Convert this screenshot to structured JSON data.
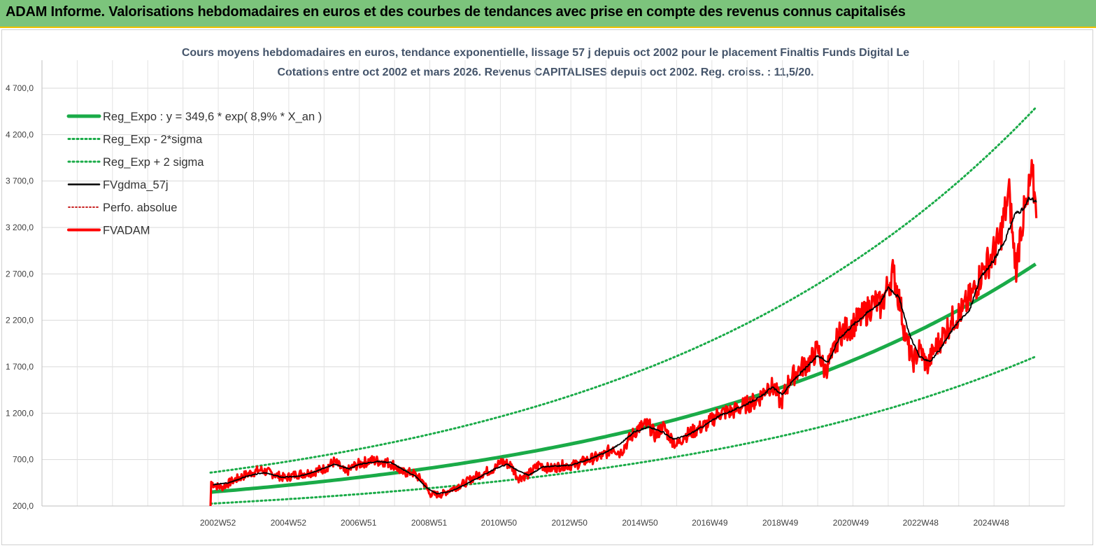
{
  "banner": {
    "text": "ADAM Informe. Valorisations hebdomadaires en euros et des courbes de tendances avec prise en compte des revenus connus capitalisés"
  },
  "chart_data": {
    "type": "line",
    "title_line1": "Cours moyens hebdomadaires en euros, tendance exponentielle, lissage 57 j depuis oct 2002 pour le placement Finaltis Funds Digital Le",
    "title_line2": "Cotations entre oct 2002 et mars 2026. Revenus CAPITALISES depuis oct 2002. Reg. croiss. : 11,5/20.",
    "ylim": [
      200,
      4700
    ],
    "yticks": [
      200,
      700,
      1200,
      1700,
      2200,
      2700,
      3200,
      3700,
      4200,
      4700
    ],
    "ytick_labels": [
      "200,0",
      "700,0",
      "1 200,0",
      "1 700,0",
      "2 200,0",
      "2 700,0",
      "3 200,0",
      "3 700,0",
      "4 200,0",
      "4 700,0"
    ],
    "xlim": [
      1998.0,
      2027.0
    ],
    "xtick_labels": [
      {
        "label": "2002W52",
        "x": 2002.99
      },
      {
        "label": "2004W52",
        "x": 2004.99
      },
      {
        "label": "2006W51",
        "x": 2006.98
      },
      {
        "label": "2008W51",
        "x": 2008.98
      },
      {
        "label": "2010W50",
        "x": 2010.96
      },
      {
        "label": "2012W50",
        "x": 2012.96
      },
      {
        "label": "2014W50",
        "x": 2014.96
      },
      {
        "label": "2016W49",
        "x": 2016.94
      },
      {
        "label": "2018W49",
        "x": 2018.94
      },
      {
        "label": "2020W49",
        "x": 2020.94
      },
      {
        "label": "2022W48",
        "x": 2022.92
      },
      {
        "label": "2024W48",
        "x": 2024.92
      }
    ],
    "start_year": 2002.78,
    "end_year": 2026.2,
    "legend_placement": "top-left",
    "regression": {
      "a": 349.6,
      "rate": 0.089
    },
    "series": [
      {
        "name": "Reg_Expo : y = 349,6 * exp( 8,9% *  X_an )",
        "color": "#1aab48",
        "style": "thick",
        "values": [
          [
            2002.8,
            349.6
          ],
          [
            2026.2,
            2849
          ]
        ]
      },
      {
        "name": "Reg_Exp - 2*sigma",
        "color": "#1aab48",
        "style": "dotted",
        "values": [
          [
            2002.8,
            225
          ],
          [
            2026.2,
            1790
          ]
        ]
      },
      {
        "name": "Reg_Exp + 2 sigma",
        "color": "#1aab48",
        "style": "dotted",
        "values": [
          [
            2002.8,
            550
          ],
          [
            2026.2,
            4570
          ]
        ]
      },
      {
        "name": "FVgdma_57j",
        "color": "#000000",
        "style": "line",
        "values": [
          [
            2002.85,
            430
          ],
          [
            2003.3,
            450
          ],
          [
            2003.8,
            520
          ],
          [
            2004.3,
            560
          ],
          [
            2004.8,
            510
          ],
          [
            2005.3,
            520
          ],
          [
            2005.8,
            580
          ],
          [
            2006.3,
            650
          ],
          [
            2006.7,
            600
          ],
          [
            2007.0,
            650
          ],
          [
            2007.5,
            680
          ],
          [
            2007.9,
            670
          ],
          [
            2008.2,
            600
          ],
          [
            2008.6,
            520
          ],
          [
            2008.9,
            400
          ],
          [
            2009.2,
            330
          ],
          [
            2009.6,
            360
          ],
          [
            2010.0,
            430
          ],
          [
            2010.5,
            530
          ],
          [
            2010.9,
            610
          ],
          [
            2011.2,
            650
          ],
          [
            2011.5,
            580
          ],
          [
            2011.8,
            530
          ],
          [
            2012.2,
            620
          ],
          [
            2012.6,
            630
          ],
          [
            2013.0,
            640
          ],
          [
            2013.5,
            700
          ],
          [
            2014.0,
            780
          ],
          [
            2014.4,
            870
          ],
          [
            2014.8,
            1000
          ],
          [
            2015.2,
            1050
          ],
          [
            2015.6,
            1000
          ],
          [
            2015.9,
            920
          ],
          [
            2016.3,
            960
          ],
          [
            2016.8,
            1070
          ],
          [
            2017.2,
            1170
          ],
          [
            2017.6,
            1230
          ],
          [
            2018.0,
            1300
          ],
          [
            2018.4,
            1380
          ],
          [
            2018.7,
            1480
          ],
          [
            2019.0,
            1400
          ],
          [
            2019.3,
            1550
          ],
          [
            2019.7,
            1700
          ],
          [
            2020.0,
            1820
          ],
          [
            2020.3,
            1750
          ],
          [
            2020.6,
            2000
          ],
          [
            2021.0,
            2150
          ],
          [
            2021.4,
            2280
          ],
          [
            2021.8,
            2400
          ],
          [
            2022.0,
            2560
          ],
          [
            2022.3,
            2450
          ],
          [
            2022.6,
            2050
          ],
          [
            2022.9,
            1800
          ],
          [
            2023.2,
            1760
          ],
          [
            2023.5,
            1900
          ],
          [
            2023.9,
            2150
          ],
          [
            2024.3,
            2300
          ],
          [
            2024.6,
            2650
          ],
          [
            2025.0,
            2850
          ],
          [
            2025.3,
            3050
          ],
          [
            2025.6,
            3350
          ],
          [
            2025.85,
            3400
          ],
          [
            2026.0,
            3520
          ],
          [
            2026.2,
            3470
          ]
        ]
      },
      {
        "name": "Perfo. absolue",
        "color": "#c00000",
        "style": "dotted-thin",
        "values": []
      },
      {
        "name": "FVADAM",
        "color": "#ff0000",
        "style": "thick",
        "values": [
          [
            2002.78,
            200
          ],
          [
            2002.8,
            460
          ],
          [
            2002.9,
            420
          ],
          [
            2003.1,
            400
          ],
          [
            2003.4,
            470
          ],
          [
            2003.8,
            540
          ],
          [
            2004.2,
            590
          ],
          [
            2004.6,
            540
          ],
          [
            2004.9,
            500
          ],
          [
            2005.2,
            540
          ],
          [
            2005.6,
            560
          ],
          [
            2006.0,
            600
          ],
          [
            2006.3,
            680
          ],
          [
            2006.6,
            560
          ],
          [
            2006.9,
            640
          ],
          [
            2007.3,
            690
          ],
          [
            2007.7,
            680
          ],
          [
            2008.0,
            640
          ],
          [
            2008.2,
            560
          ],
          [
            2008.5,
            560
          ],
          [
            2008.8,
            470
          ],
          [
            2009.0,
            330
          ],
          [
            2009.3,
            320
          ],
          [
            2009.6,
            380
          ],
          [
            2010.0,
            450
          ],
          [
            2010.3,
            520
          ],
          [
            2010.6,
            570
          ],
          [
            2010.9,
            620
          ],
          [
            2011.0,
            680
          ],
          [
            2011.3,
            640
          ],
          [
            2011.5,
            500
          ],
          [
            2011.8,
            540
          ],
          [
            2012.1,
            650
          ],
          [
            2012.4,
            600
          ],
          [
            2012.8,
            640
          ],
          [
            2013.1,
            640
          ],
          [
            2013.5,
            700
          ],
          [
            2013.9,
            740
          ],
          [
            2014.2,
            830
          ],
          [
            2014.4,
            770
          ],
          [
            2014.6,
            890
          ],
          [
            2014.9,
            1040
          ],
          [
            2015.2,
            1080
          ],
          [
            2015.4,
            950
          ],
          [
            2015.6,
            1060
          ],
          [
            2015.8,
            950
          ],
          [
            2016.0,
            850
          ],
          [
            2016.2,
            950
          ],
          [
            2016.6,
            1030
          ],
          [
            2016.9,
            1090
          ],
          [
            2017.2,
            1200
          ],
          [
            2017.6,
            1220
          ],
          [
            2017.9,
            1280
          ],
          [
            2018.3,
            1340
          ],
          [
            2018.6,
            1500
          ],
          [
            2018.8,
            1460
          ],
          [
            2018.95,
            1300
          ],
          [
            2019.2,
            1560
          ],
          [
            2019.5,
            1680
          ],
          [
            2019.8,
            1760
          ],
          [
            2020.0,
            1900
          ],
          [
            2020.2,
            1650
          ],
          [
            2020.4,
            1800
          ],
          [
            2020.6,
            2050
          ],
          [
            2021.0,
            2150
          ],
          [
            2021.3,
            2250
          ],
          [
            2021.6,
            2400
          ],
          [
            2021.8,
            2350
          ],
          [
            2022.0,
            2580
          ],
          [
            2022.15,
            2720
          ],
          [
            2022.35,
            2350
          ],
          [
            2022.5,
            2000
          ],
          [
            2022.7,
            1750
          ],
          [
            2022.9,
            1900
          ],
          [
            2023.1,
            1700
          ],
          [
            2023.3,
            1880
          ],
          [
            2023.5,
            2000
          ],
          [
            2023.8,
            2200
          ],
          [
            2024.1,
            2300
          ],
          [
            2024.4,
            2500
          ],
          [
            2024.7,
            2750
          ],
          [
            2024.95,
            2900
          ],
          [
            2025.15,
            3050
          ],
          [
            2025.35,
            3430
          ],
          [
            2025.45,
            3550
          ],
          [
            2025.55,
            2980
          ],
          [
            2025.65,
            2750
          ],
          [
            2025.75,
            3200
          ],
          [
            2025.95,
            3450
          ],
          [
            2026.05,
            3750
          ],
          [
            2026.15,
            3580
          ],
          [
            2026.2,
            3300
          ]
        ]
      }
    ]
  }
}
